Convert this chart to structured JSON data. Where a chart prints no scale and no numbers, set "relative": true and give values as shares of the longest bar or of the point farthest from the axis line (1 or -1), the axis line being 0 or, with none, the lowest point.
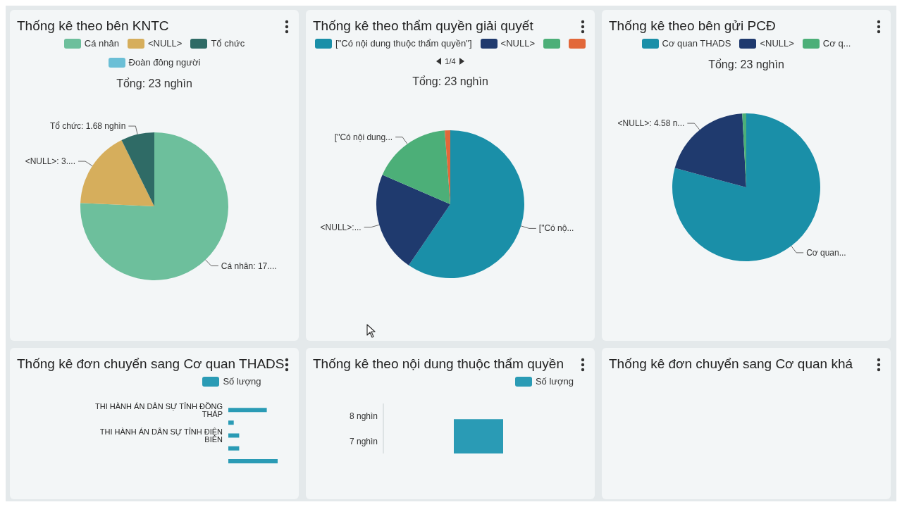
{
  "chart_data": [
    {
      "type": "pie",
      "title": "Thống kê theo bên KNTC",
      "subtitle": "Tổng: 23 nghìn",
      "legend": "top",
      "categories": [
        "Cá nhân",
        "<NULL>",
        "Tổ chức",
        "Đoàn đông người"
      ],
      "values": [
        17.4,
        3.9,
        1.68,
        0
      ],
      "colors": [
        "#6dbf9c",
        "#d6ae5c",
        "#2f6b66",
        "#6bbfd6"
      ],
      "value_labels": [
        "Cá nhân: 17....",
        "<NULL>: 3....",
        "Tổ chức: 1.68 nghìn",
        null
      ]
    },
    {
      "type": "pie",
      "title": "Thống kê theo thẩm quyền giải quyết",
      "subtitle": "Tổng: 23 nghìn",
      "legend": "top",
      "categories": [
        "[\"Có nội dung thuộc thẩm quyền\"]",
        "<NULL>",
        null,
        null
      ],
      "values": [
        59.5,
        22,
        17.3,
        1.2
      ],
      "colors": [
        "#1a8fa8",
        "#1f3a6e",
        "#4caf78",
        "#e2683a"
      ],
      "value_labels": [
        "[\"Có nộ...",
        "<NULL>:...",
        "[\"Có nội dung...",
        null
      ],
      "annotations": [
        "1/4"
      ]
    },
    {
      "type": "pie",
      "title": "Thống kê theo bên gửi PCĐ",
      "subtitle": "Tổng: 23 nghìn",
      "legend": "top",
      "categories": [
        "Cơ quan THADS",
        "<NULL>",
        "Cơ q..."
      ],
      "values": [
        18.2,
        4.58,
        0.2
      ],
      "colors": [
        "#1a8fa8",
        "#1f3a6e",
        "#4caf78"
      ],
      "value_labels": [
        "Cơ quan...",
        "<NULL>: 4.58 n...",
        null
      ]
    },
    {
      "type": "bar",
      "orientation": "horizontal",
      "relative": true,
      "title": "Thống kê đơn chuyển sang Cơ quan THADS",
      "legend": "top",
      "categories": [
        "THI HÀNH ÁN DÂN SỰ TỈNH ĐỒNG THÁP",
        null,
        "THI HÀNH ÁN DÂN SỰ TỈNH ĐIỆN BIÊN",
        null,
        null
      ],
      "series": [
        {
          "name": "Số lượng",
          "color": "#2a9bb5",
          "values": [
            0.78,
            0.11,
            0.22,
            0.22,
            1
          ]
        }
      ]
    },
    {
      "type": "bar",
      "title": "Thống kê theo nội dung thuộc thẩm quyền",
      "legend": "top right",
      "tick_labels": "y",
      "categories": [
        null
      ],
      "ylim": [
        6.5,
        8.5
      ],
      "yticks": [
        {
          "value": 7,
          "label": "7 nghìn"
        },
        {
          "value": 8,
          "label": "8 nghìn"
        }
      ],
      "series": [
        {
          "name": "Số lượng",
          "color": "#2a9bb5",
          "values": [
            7.87
          ]
        }
      ]
    },
    {
      "type": "other",
      "title": "Thống kê đơn chuyển sang Cơ quan khá"
    }
  ]
}
